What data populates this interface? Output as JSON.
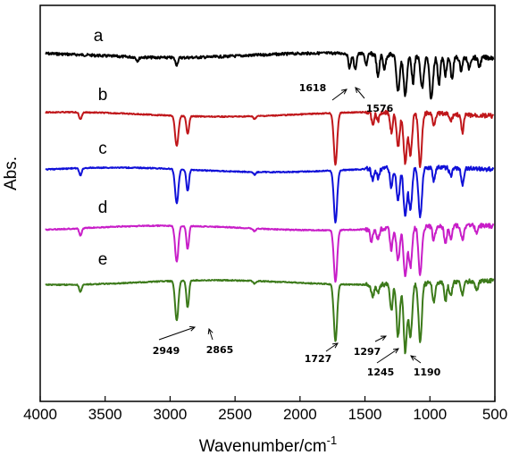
{
  "chart_data": {
    "type": "line",
    "title": "",
    "xlabel": "Wavenumber/cm",
    "xlabel_sup": "-1",
    "ylabel": "Abs.",
    "xlim": [
      4000,
      500
    ],
    "x_reversed": true,
    "xticks": [
      4000,
      3500,
      3000,
      2500,
      2000,
      1500,
      1000,
      500
    ],
    "y_ticks_shown": false,
    "grid": false,
    "legend": "none",
    "series": [
      {
        "name": "a",
        "color": "#000000",
        "offset": 0,
        "peaks": [
          [
            3250,
            4
          ],
          [
            2950,
            8
          ],
          [
            1618,
            16
          ],
          [
            1576,
            18
          ],
          [
            1490,
            12
          ],
          [
            1400,
            26
          ],
          [
            1350,
            16
          ],
          [
            1245,
            40
          ],
          [
            1190,
            44
          ],
          [
            1130,
            30
          ],
          [
            1060,
            36
          ],
          [
            990,
            48
          ],
          [
            930,
            30
          ],
          [
            880,
            20
          ],
          [
            830,
            24
          ],
          [
            760,
            14
          ],
          [
            700,
            12
          ],
          [
            620,
            10
          ]
        ]
      },
      {
        "name": "b",
        "color": "#c0171b",
        "offset": 66,
        "peaks": [
          [
            3690,
            8
          ],
          [
            2949,
            34
          ],
          [
            2865,
            20
          ],
          [
            2350,
            3
          ],
          [
            1727,
            58
          ],
          [
            1440,
            14
          ],
          [
            1400,
            10
          ],
          [
            1297,
            22
          ],
          [
            1245,
            38
          ],
          [
            1190,
            56
          ],
          [
            1150,
            46
          ],
          [
            1075,
            60
          ],
          [
            970,
            12
          ],
          [
            840,
            8
          ],
          [
            750,
            20
          ]
        ]
      },
      {
        "name": "c",
        "color": "#1010d8",
        "offset": 128,
        "peaks": [
          [
            3690,
            8
          ],
          [
            2949,
            38
          ],
          [
            2865,
            24
          ],
          [
            2350,
            3
          ],
          [
            1727,
            58
          ],
          [
            1440,
            14
          ],
          [
            1400,
            10
          ],
          [
            1297,
            22
          ],
          [
            1245,
            36
          ],
          [
            1190,
            56
          ],
          [
            1150,
            46
          ],
          [
            1075,
            56
          ],
          [
            970,
            14
          ],
          [
            840,
            10
          ],
          [
            750,
            20
          ]
        ]
      },
      {
        "name": "d",
        "color": "#c81ec8",
        "offset": 193,
        "peaks": [
          [
            3690,
            8
          ],
          [
            2949,
            40
          ],
          [
            2865,
            26
          ],
          [
            2350,
            3
          ],
          [
            1727,
            58
          ],
          [
            1450,
            14
          ],
          [
            1400,
            12
          ],
          [
            1297,
            24
          ],
          [
            1245,
            36
          ],
          [
            1190,
            56
          ],
          [
            1150,
            44
          ],
          [
            1075,
            54
          ],
          [
            970,
            16
          ],
          [
            880,
            20
          ],
          [
            840,
            14
          ],
          [
            750,
            16
          ],
          [
            640,
            8
          ]
        ]
      },
      {
        "name": "e",
        "color": "#3c7a1a",
        "offset": 254,
        "peaks": [
          [
            3690,
            8
          ],
          [
            2949,
            44
          ],
          [
            2865,
            30
          ],
          [
            2350,
            3
          ],
          [
            1727,
            64
          ],
          [
            1440,
            14
          ],
          [
            1400,
            10
          ],
          [
            1297,
            30
          ],
          [
            1245,
            58
          ],
          [
            1190,
            76
          ],
          [
            1150,
            60
          ],
          [
            1075,
            64
          ],
          [
            970,
            22
          ],
          [
            880,
            20
          ],
          [
            840,
            16
          ],
          [
            750,
            16
          ],
          [
            640,
            10
          ]
        ]
      }
    ],
    "annotations": [
      {
        "text": "1618",
        "series": "a"
      },
      {
        "text": "1576",
        "series": "a"
      },
      {
        "text": "2949",
        "series": "e"
      },
      {
        "text": "2865",
        "series": "e"
      },
      {
        "text": "1727",
        "series": "e"
      },
      {
        "text": "1297",
        "series": "e"
      },
      {
        "text": "1245",
        "series": "e"
      },
      {
        "text": "1190",
        "series": "e"
      }
    ]
  }
}
